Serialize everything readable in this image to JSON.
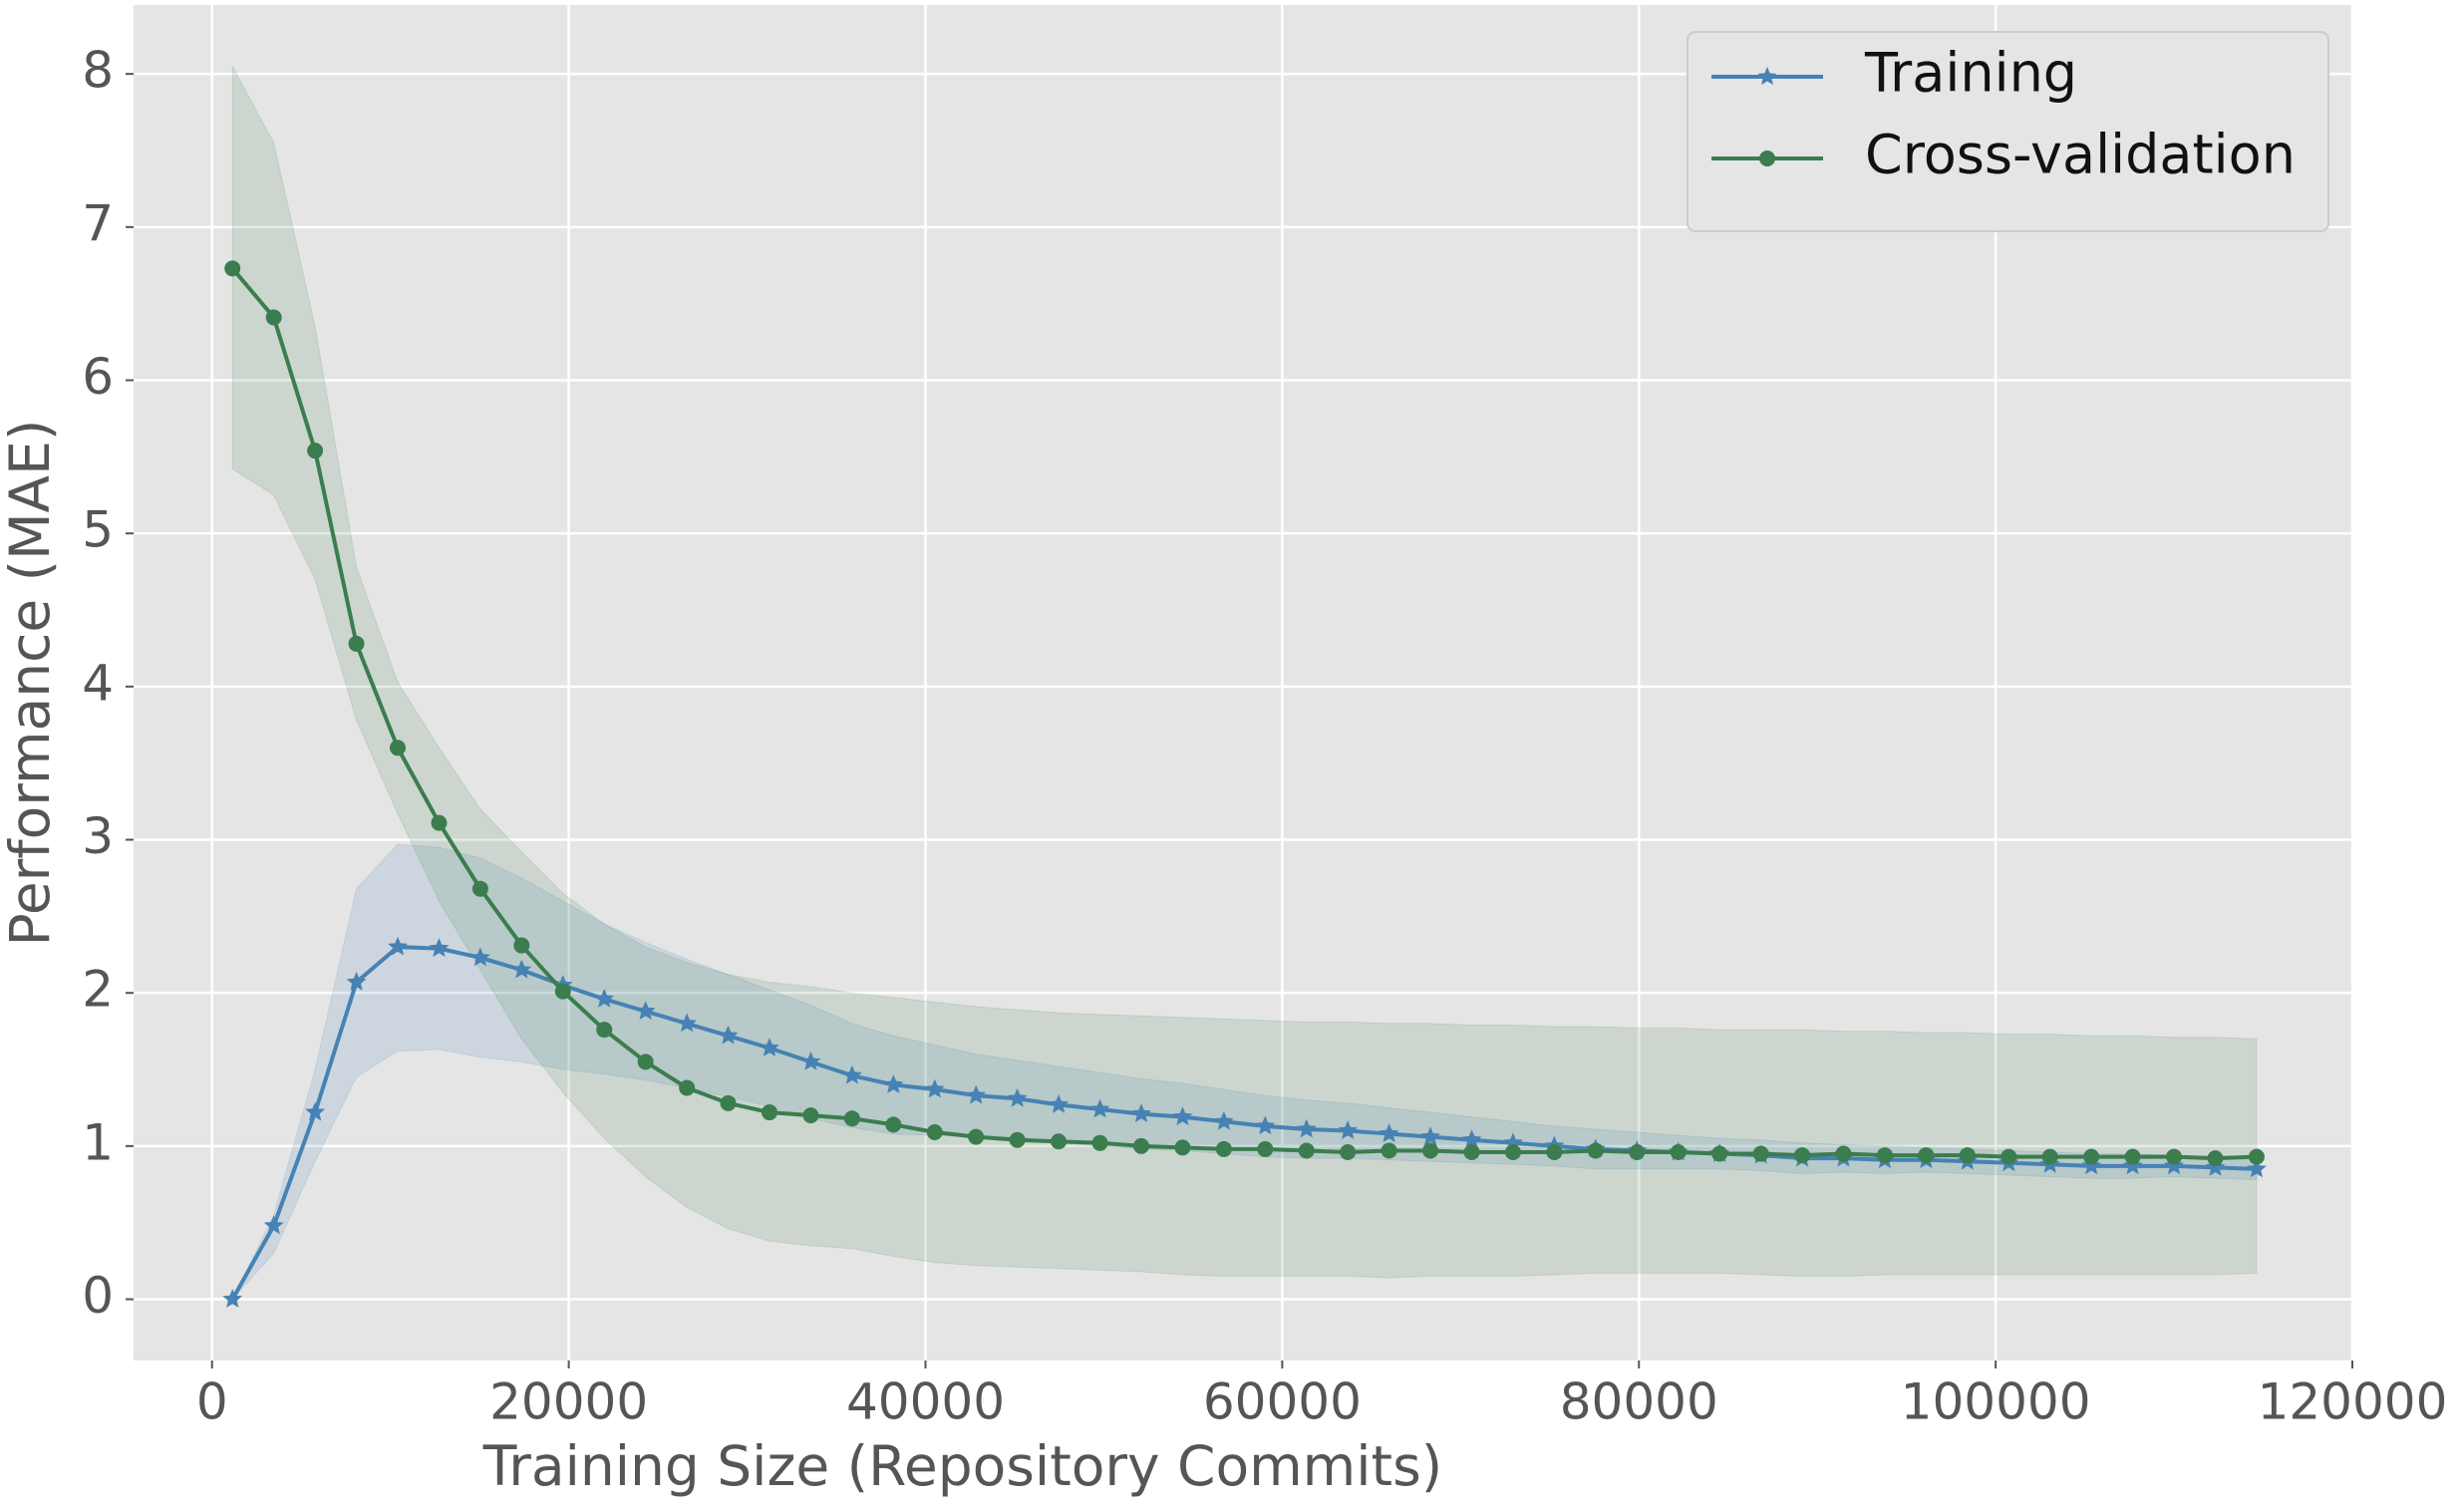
{
  "chart_data": {
    "type": "line",
    "xlabel": "Training Size (Repository Commits)",
    "ylabel": "Performance (MAE)",
    "x": [
      1146,
      3462,
      5778,
      8094,
      10410,
      12726,
      15042,
      17358,
      19674,
      21990,
      24306,
      26622,
      28938,
      31254,
      33570,
      35886,
      38202,
      40518,
      42834,
      45150,
      47466,
      49782,
      52098,
      54414,
      56730,
      59046,
      61362,
      63678,
      65994,
      68310,
      70626,
      72942,
      75258,
      77574,
      79890,
      82206,
      84522,
      86838,
      89154,
      91470,
      93786,
      96102,
      98418,
      100734,
      103050,
      105366,
      107682,
      109998,
      112314,
      114630
    ],
    "series": [
      {
        "name": "Training",
        "color": "#4682b4",
        "marker": "star",
        "values": [
          0,
          0.48,
          1.22,
          2.07,
          2.3,
          2.29,
          2.23,
          2.15,
          2.05,
          1.96,
          1.88,
          1.8,
          1.72,
          1.64,
          1.55,
          1.46,
          1.4,
          1.37,
          1.33,
          1.31,
          1.27,
          1.24,
          1.21,
          1.19,
          1.16,
          1.13,
          1.11,
          1.1,
          1.08,
          1.06,
          1.04,
          1.02,
          1.0,
          0.98,
          0.97,
          0.96,
          0.95,
          0.94,
          0.92,
          0.92,
          0.91,
          0.91,
          0.9,
          0.89,
          0.88,
          0.87,
          0.87,
          0.87,
          0.86,
          0.85
        ],
        "upper": [
          0,
          0.55,
          1.5,
          2.68,
          2.97,
          2.95,
          2.88,
          2.75,
          2.6,
          2.45,
          2.33,
          2.22,
          2.12,
          2.02,
          1.92,
          1.8,
          1.72,
          1.66,
          1.6,
          1.56,
          1.52,
          1.48,
          1.44,
          1.41,
          1.37,
          1.33,
          1.3,
          1.28,
          1.25,
          1.22,
          1.19,
          1.16,
          1.13,
          1.11,
          1.09,
          1.07,
          1.05,
          1.04,
          1.02,
          1.01,
          1.0,
          0.99,
          0.98,
          0.97,
          0.96,
          0.95,
          0.95,
          0.94,
          0.93,
          0.92
        ],
        "lower": [
          0,
          0.3,
          0.9,
          1.45,
          1.62,
          1.63,
          1.58,
          1.55,
          1.5,
          1.47,
          1.43,
          1.38,
          1.32,
          1.26,
          1.18,
          1.12,
          1.08,
          1.07,
          1.06,
          1.06,
          1.02,
          1.0,
          0.98,
          0.97,
          0.95,
          0.93,
          0.92,
          0.92,
          0.91,
          0.9,
          0.89,
          0.88,
          0.87,
          0.85,
          0.85,
          0.85,
          0.85,
          0.84,
          0.82,
          0.83,
          0.82,
          0.83,
          0.82,
          0.81,
          0.8,
          0.79,
          0.79,
          0.8,
          0.79,
          0.78
        ]
      },
      {
        "name": "Cross-validation",
        "color": "#3b7d4e",
        "marker": "circle",
        "values": [
          6.73,
          6.41,
          5.54,
          4.28,
          3.6,
          3.11,
          2.68,
          2.31,
          2.01,
          1.76,
          1.55,
          1.38,
          1.28,
          1.22,
          1.2,
          1.18,
          1.14,
          1.09,
          1.06,
          1.04,
          1.03,
          1.02,
          1.0,
          0.99,
          0.98,
          0.98,
          0.97,
          0.96,
          0.97,
          0.97,
          0.96,
          0.96,
          0.96,
          0.97,
          0.96,
          0.96,
          0.95,
          0.95,
          0.94,
          0.95,
          0.94,
          0.94,
          0.94,
          0.93,
          0.93,
          0.93,
          0.93,
          0.93,
          0.92,
          0.93
        ],
        "upper": [
          8.05,
          7.55,
          6.35,
          4.78,
          4.03,
          3.6,
          3.2,
          2.92,
          2.65,
          2.45,
          2.3,
          2.2,
          2.12,
          2.07,
          2.04,
          2.0,
          1.97,
          1.94,
          1.91,
          1.89,
          1.87,
          1.86,
          1.85,
          1.84,
          1.83,
          1.82,
          1.81,
          1.81,
          1.8,
          1.8,
          1.79,
          1.79,
          1.78,
          1.78,
          1.77,
          1.77,
          1.76,
          1.76,
          1.76,
          1.75,
          1.75,
          1.74,
          1.74,
          1.73,
          1.73,
          1.72,
          1.72,
          1.71,
          1.71,
          1.7
        ],
        "lower": [
          5.42,
          5.25,
          4.7,
          3.78,
          3.17,
          2.6,
          2.15,
          1.7,
          1.35,
          1.05,
          0.8,
          0.6,
          0.46,
          0.38,
          0.35,
          0.33,
          0.28,
          0.24,
          0.22,
          0.21,
          0.2,
          0.19,
          0.18,
          0.16,
          0.15,
          0.15,
          0.15,
          0.15,
          0.14,
          0.15,
          0.15,
          0.15,
          0.16,
          0.17,
          0.17,
          0.17,
          0.17,
          0.16,
          0.15,
          0.15,
          0.16,
          0.16,
          0.16,
          0.16,
          0.16,
          0.16,
          0.16,
          0.16,
          0.16,
          0.17
        ]
      }
    ],
    "xlim": [
      -4400,
      120000
    ],
    "xticks": [
      0,
      20000,
      40000,
      60000,
      80000,
      100000,
      120000
    ],
    "ylim": [
      -0.4,
      8.45
    ],
    "yticks": [
      0,
      1,
      2,
      3,
      4,
      5,
      6,
      7,
      8
    ],
    "grid": true,
    "legend": "upper right"
  }
}
